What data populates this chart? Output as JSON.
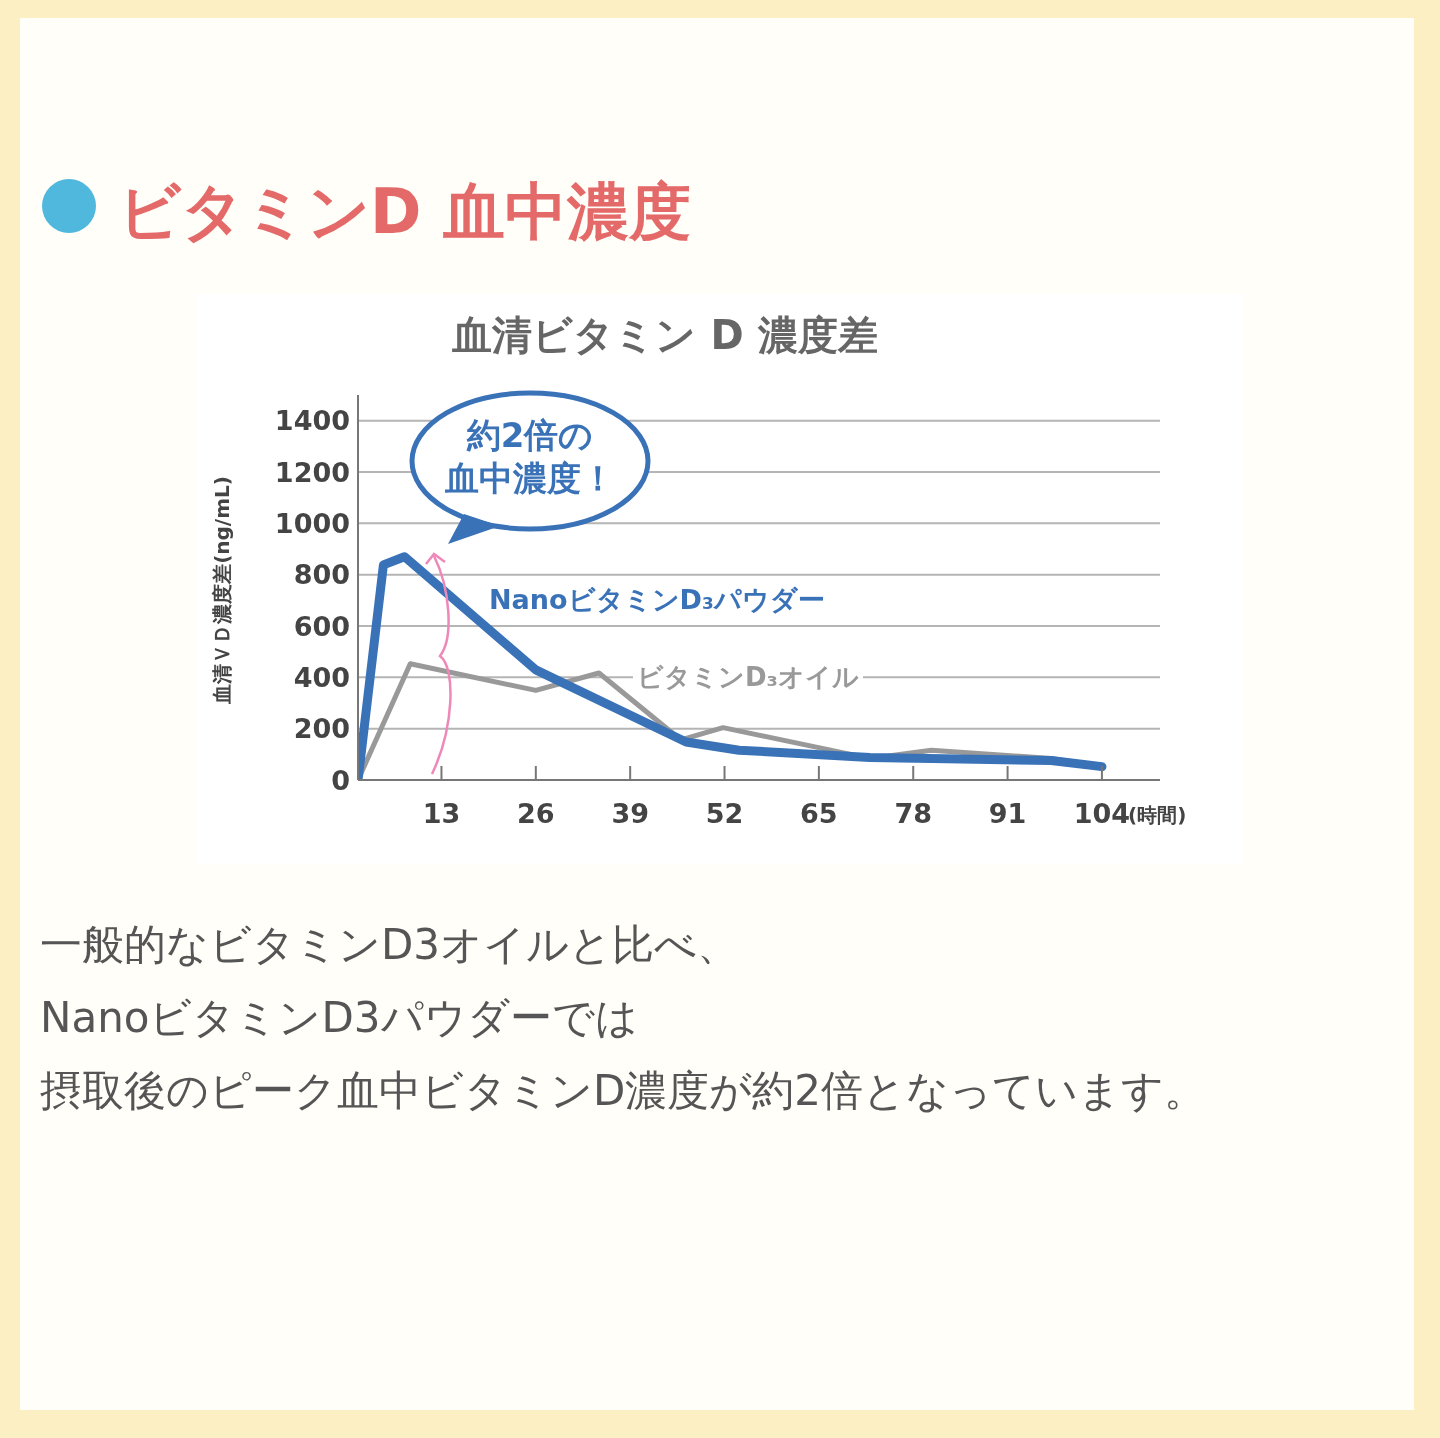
{
  "chart_data": {
    "type": "line",
    "title": "ビタミンD 血中濃度",
    "subtitle": "血清ビタミン D 濃度差",
    "ylabel": "血清ＶＤ濃度差(ng/mL)",
    "xlabel": "(時間)",
    "annotations": [
      "約2倍の",
      "血中濃度！",
      "一般的なビタミンD3オイルと比べ、",
      "NanoビタミンD3パウダーでは",
      "摂取後のピーク血中ビタミンD濃度が約2倍となっています。"
    ],
    "series": [
      {
        "name": "ビタミンD₃オイル",
        "color": "#999999",
        "x": [
          1.5,
          8.7,
          26,
          34.7,
          46,
          51.8,
          65.3,
          72,
          80.5,
          97,
          104
        ],
        "values": [
          0,
          453,
          349,
          417,
          156,
          204,
          124,
          84,
          116,
          84,
          52
        ]
      },
      {
        "name": "NanoビタミンD₃パウダー",
        "color": "#3a72b8",
        "x": [
          1.5,
          5,
          7.9,
          26,
          46.7,
          54,
          72,
          97,
          104
        ],
        "values": [
          0,
          838,
          870,
          429,
          148,
          116,
          88,
          76,
          52
        ]
      }
    ],
    "xlim": [
      1.5,
      112
    ],
    "xticks": [
      13,
      26,
      39,
      52,
      65,
      78,
      91,
      104
    ],
    "ylim": [
      0,
      1500
    ],
    "yticks": [
      0,
      200,
      400,
      600,
      800,
      1000,
      1200,
      1400
    ],
    "grid": "y",
    "marker": "none"
  }
}
